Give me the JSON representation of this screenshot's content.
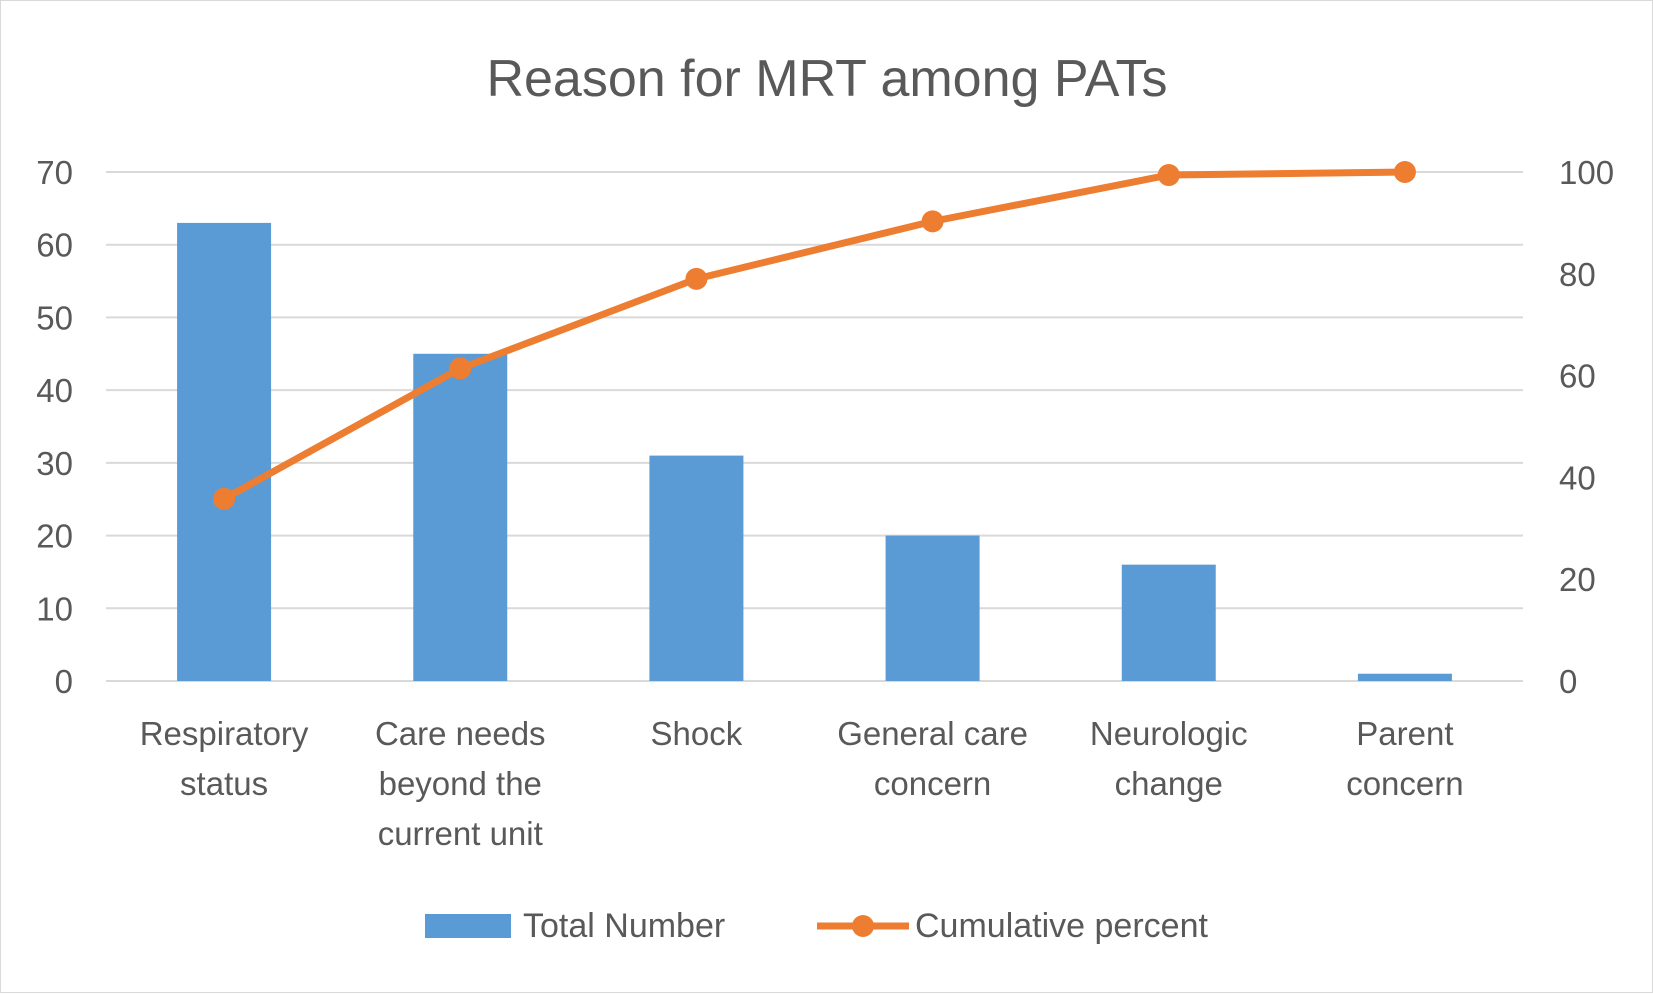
{
  "chart_data": {
    "type": "bar",
    "title": "Reason for MRT among PATs",
    "categories": [
      [
        "Respiratory",
        "status"
      ],
      [
        "Care needs",
        "beyond the",
        "current unit"
      ],
      [
        "Shock"
      ],
      [
        "General care",
        "concern"
      ],
      [
        "Neurologic",
        "change"
      ],
      [
        "Parent",
        "concern"
      ]
    ],
    "series": [
      {
        "name": "Total Number",
        "type": "bar",
        "axis": "left",
        "color": "#5B9BD5",
        "values": [
          63,
          45,
          31,
          20,
          16,
          1
        ]
      },
      {
        "name": "Cumulative percent",
        "type": "line",
        "axis": "right",
        "color": "#ED7D31",
        "values": [
          35.8,
          61.4,
          79.0,
          90.3,
          99.4,
          100
        ]
      }
    ],
    "y_left": {
      "lim": [
        0,
        70
      ],
      "ticks": [
        "0",
        "10",
        "20",
        "30",
        "40",
        "50",
        "60",
        "70"
      ]
    },
    "y_right": {
      "lim": [
        0,
        100
      ],
      "ticks": [
        "0",
        "20",
        "40",
        "60",
        "80",
        "100"
      ]
    },
    "grid": true,
    "legend_position": "bottom",
    "gridline_color": "#d9d9d9"
  }
}
